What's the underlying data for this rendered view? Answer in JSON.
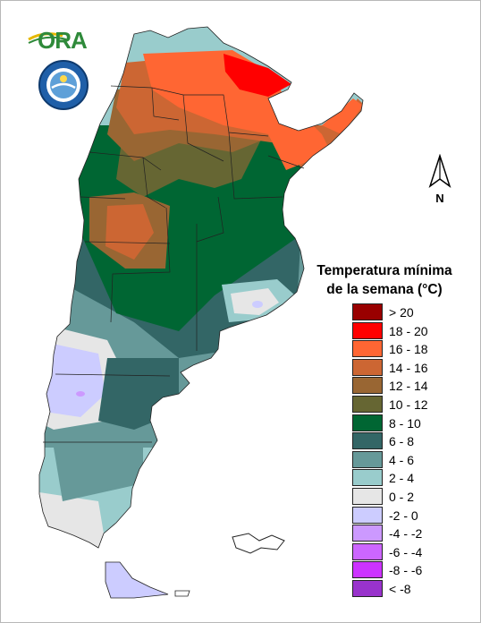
{
  "logos": {
    "ora_text": "ORA",
    "seal_name": "seal-logo"
  },
  "compass": {
    "letter": "N"
  },
  "legend": {
    "title_line1": "Temperatura mínima",
    "title_line2": "de la semana (°C)",
    "items": [
      {
        "label": "> 20",
        "color": "#990000"
      },
      {
        "label": "18 - 20",
        "color": "#ff0000"
      },
      {
        "label": "16 - 18",
        "color": "#ff6633"
      },
      {
        "label": "14 - 16",
        "color": "#cc6633"
      },
      {
        "label": "12 - 14",
        "color": "#996633"
      },
      {
        "label": "10 - 12",
        "color": "#666633"
      },
      {
        "label": "8 - 10",
        "color": "#006633"
      },
      {
        "label": "6 - 8",
        "color": "#336666"
      },
      {
        "label": "4 - 6",
        "color": "#669999"
      },
      {
        "label": "2 - 4",
        "color": "#99cccc"
      },
      {
        "label": "0 - 2",
        "color": "#e6e6e6"
      },
      {
        "label": "-2 - 0",
        "color": "#ccccff"
      },
      {
        "label": "-4 - -2",
        "color": "#cc99ff"
      },
      {
        "label": "-6 - -4",
        "color": "#cc66ff"
      },
      {
        "label": "-8 - -6",
        "color": "#cc33ff"
      },
      {
        "label": "< -8",
        "color": "#9933cc"
      }
    ]
  }
}
